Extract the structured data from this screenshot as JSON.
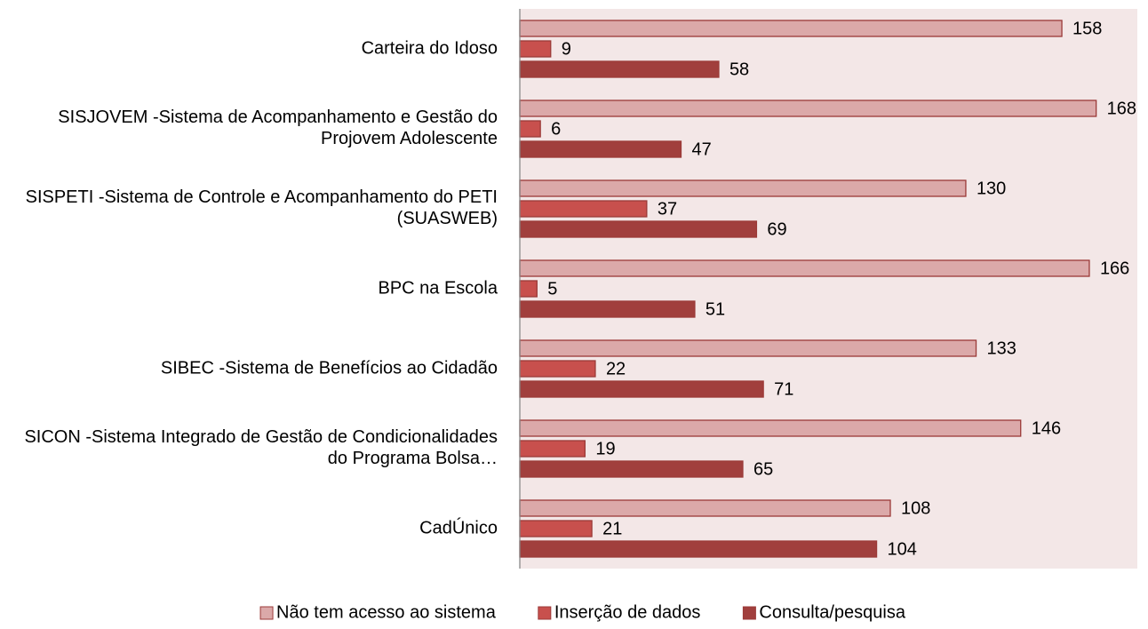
{
  "chart_data": {
    "type": "hbar",
    "categories": [
      "Carteira do Idoso",
      "SISJOVEM -Sistema de Acompanhamento e Gestão do Projovem Adolescente",
      "SISPETI -Sistema de Controle e Acompanhamento do PETI (SUASWEB)",
      "BPC na Escola",
      "SIBEC -Sistema de Benefícios ao Cidadão",
      "SICON -Sistema Integrado de Gestão de Condicionalidades do Programa Bolsa…",
      "CadÚnico"
    ],
    "series": [
      {
        "name": "Não tem acesso ao sistema",
        "color": "#dba9a9",
        "values": [
          158,
          168,
          130,
          166,
          133,
          146,
          108
        ]
      },
      {
        "name": "Inserção de dados",
        "color": "#c8504d",
        "values": [
          9,
          6,
          37,
          5,
          22,
          19,
          21
        ]
      },
      {
        "name": "Consulta/pesquisa",
        "color": "#a13f3d",
        "values": [
          58,
          47,
          69,
          51,
          71,
          65,
          104
        ]
      }
    ],
    "xlim": [
      0,
      180
    ],
    "legend": "bottom"
  }
}
